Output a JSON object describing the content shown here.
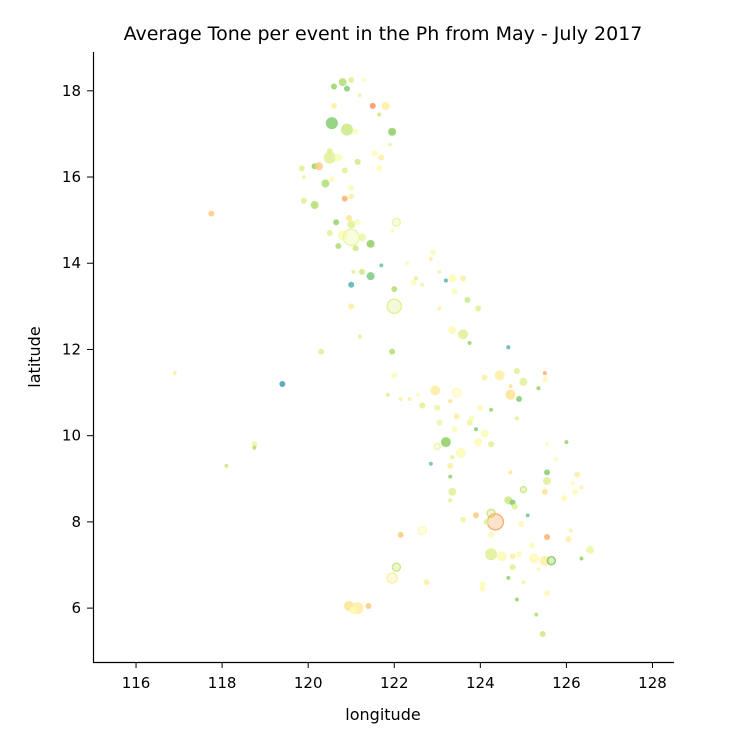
{
  "chart_data": {
    "type": "scatter",
    "title": "Average Tone per event in the Ph from May - July 2017",
    "xlabel": "longitude",
    "ylabel": "latitude",
    "xlim": [
      115,
      128.5
    ],
    "ylim": [
      4.75,
      18.9
    ],
    "x_ticks": [
      116,
      118,
      120,
      122,
      124,
      126,
      128
    ],
    "y_ticks": [
      6,
      8,
      10,
      12,
      14,
      16,
      18
    ],
    "grid": false,
    "legend": "none",
    "color_scale": [
      "#d7301f",
      "#fc8d59",
      "#fee08b",
      "#ffffbf",
      "#d9ef8b",
      "#91cf60",
      "#66c2a5",
      "#3288bd"
    ],
    "points": [
      {
        "x": 120.9,
        "y": 18.05,
        "size": 3,
        "tone": 0.75
      },
      {
        "x": 120.6,
        "y": 18.1,
        "size": 3,
        "tone": 0.7
      },
      {
        "x": 120.8,
        "y": 18.2,
        "size": 4,
        "tone": 0.65
      },
      {
        "x": 121.0,
        "y": 18.25,
        "size": 3,
        "tone": 0.55
      },
      {
        "x": 121.3,
        "y": 18.25,
        "size": 2,
        "tone": 0.4
      },
      {
        "x": 121.2,
        "y": 17.9,
        "size": 2,
        "tone": 0.5
      },
      {
        "x": 120.6,
        "y": 17.65,
        "size": 3,
        "tone": 0.35
      },
      {
        "x": 121.5,
        "y": 17.65,
        "size": 3,
        "tone": 0.15
      },
      {
        "x": 121.8,
        "y": 17.65,
        "size": 4,
        "tone": 0.35
      },
      {
        "x": 121.65,
        "y": 17.45,
        "size": 2,
        "tone": 0.6
      },
      {
        "x": 120.55,
        "y": 17.25,
        "size": 6,
        "tone": 0.75
      },
      {
        "x": 120.9,
        "y": 17.1,
        "size": 6,
        "tone": 0.6
      },
      {
        "x": 121.1,
        "y": 17.05,
        "size": 3,
        "tone": 0.45
      },
      {
        "x": 121.95,
        "y": 17.05,
        "size": 4,
        "tone": 0.72
      },
      {
        "x": 121.9,
        "y": 16.75,
        "size": 2,
        "tone": 0.5
      },
      {
        "x": 120.5,
        "y": 16.6,
        "size": 3,
        "tone": 0.55
      },
      {
        "x": 120.5,
        "y": 16.45,
        "size": 6,
        "tone": 0.55
      },
      {
        "x": 120.7,
        "y": 16.45,
        "size": 4,
        "tone": 0.45
      },
      {
        "x": 121.55,
        "y": 16.55,
        "size": 3,
        "tone": 0.4
      },
      {
        "x": 121.7,
        "y": 16.45,
        "size": 3,
        "tone": 0.35
      },
      {
        "x": 121.15,
        "y": 16.35,
        "size": 3,
        "tone": 0.6
      },
      {
        "x": 120.15,
        "y": 16.25,
        "size": 3,
        "tone": 0.7
      },
      {
        "x": 120.25,
        "y": 16.25,
        "size": 4,
        "tone": 0.25
      },
      {
        "x": 119.85,
        "y": 16.2,
        "size": 3,
        "tone": 0.55
      },
      {
        "x": 120.85,
        "y": 16.15,
        "size": 3,
        "tone": 0.55
      },
      {
        "x": 121.65,
        "y": 16.2,
        "size": 3,
        "tone": 0.4
      },
      {
        "x": 119.9,
        "y": 16.0,
        "size": 2,
        "tone": 0.35
      },
      {
        "x": 120.55,
        "y": 15.95,
        "size": 3,
        "tone": 0.45
      },
      {
        "x": 120.4,
        "y": 15.85,
        "size": 4,
        "tone": 0.65
      },
      {
        "x": 121.0,
        "y": 15.75,
        "size": 3,
        "tone": 0.45
      },
      {
        "x": 119.9,
        "y": 15.45,
        "size": 3,
        "tone": 0.55
      },
      {
        "x": 120.15,
        "y": 15.35,
        "size": 4,
        "tone": 0.65
      },
      {
        "x": 120.85,
        "y": 15.5,
        "size": 3,
        "tone": 0.2
      },
      {
        "x": 121.0,
        "y": 15.55,
        "size": 3,
        "tone": 0.35
      },
      {
        "x": 117.75,
        "y": 15.15,
        "size": 3,
        "tone": 0.25
      },
      {
        "x": 120.65,
        "y": 14.95,
        "size": 3,
        "tone": 0.7
      },
      {
        "x": 120.95,
        "y": 15.05,
        "size": 3,
        "tone": 0.3
      },
      {
        "x": 121.0,
        "y": 14.9,
        "size": 4,
        "tone": 0.55
      },
      {
        "x": 121.15,
        "y": 14.95,
        "size": 3,
        "tone": 0.45
      },
      {
        "x": 122.05,
        "y": 14.95,
        "size": 4,
        "tone": 0.5,
        "ring": true
      },
      {
        "x": 121.95,
        "y": 14.75,
        "size": 2,
        "tone": 0.45
      },
      {
        "x": 120.5,
        "y": 14.7,
        "size": 3,
        "tone": 0.55
      },
      {
        "x": 120.8,
        "y": 14.65,
        "size": 5,
        "tone": 0.4
      },
      {
        "x": 121.0,
        "y": 14.6,
        "size": 8,
        "tone": 0.5,
        "ring": true
      },
      {
        "x": 121.25,
        "y": 14.6,
        "size": 4,
        "tone": 0.5
      },
      {
        "x": 121.45,
        "y": 14.45,
        "size": 4,
        "tone": 0.72
      },
      {
        "x": 121.1,
        "y": 14.35,
        "size": 3,
        "tone": 0.6
      },
      {
        "x": 120.7,
        "y": 14.4,
        "size": 3,
        "tone": 0.65
      },
      {
        "x": 122.9,
        "y": 14.25,
        "size": 3,
        "tone": 0.45
      },
      {
        "x": 122.85,
        "y": 14.1,
        "size": 2,
        "tone": 0.35
      },
      {
        "x": 122.3,
        "y": 14.0,
        "size": 2,
        "tone": 0.4
      },
      {
        "x": 121.7,
        "y": 13.95,
        "size": 2,
        "tone": 0.85
      },
      {
        "x": 121.05,
        "y": 13.8,
        "size": 2,
        "tone": 0.55
      },
      {
        "x": 121.25,
        "y": 13.8,
        "size": 3,
        "tone": 0.6
      },
      {
        "x": 123.05,
        "y": 13.8,
        "size": 2,
        "tone": 0.35
      },
      {
        "x": 121.45,
        "y": 13.7,
        "size": 4,
        "tone": 0.78
      },
      {
        "x": 122.5,
        "y": 13.65,
        "size": 2,
        "tone": 0.55
      },
      {
        "x": 123.35,
        "y": 13.65,
        "size": 4,
        "tone": 0.4
      },
      {
        "x": 123.6,
        "y": 13.65,
        "size": 3,
        "tone": 0.35
      },
      {
        "x": 123.2,
        "y": 13.6,
        "size": 2,
        "tone": 0.9
      },
      {
        "x": 122.45,
        "y": 13.55,
        "size": 3,
        "tone": 0.4
      },
      {
        "x": 122.65,
        "y": 13.5,
        "size": 2,
        "tone": 0.5
      },
      {
        "x": 121.0,
        "y": 13.5,
        "size": 3,
        "tone": 0.9
      },
      {
        "x": 122.0,
        "y": 13.4,
        "size": 3,
        "tone": 0.65
      },
      {
        "x": 123.4,
        "y": 13.35,
        "size": 3,
        "tone": 0.45
      },
      {
        "x": 123.7,
        "y": 13.15,
        "size": 3,
        "tone": 0.6
      },
      {
        "x": 122.0,
        "y": 13.0,
        "size": 7,
        "tone": 0.55,
        "ring": true
      },
      {
        "x": 123.05,
        "y": 12.95,
        "size": 2,
        "tone": 0.35
      },
      {
        "x": 123.95,
        "y": 12.95,
        "size": 3,
        "tone": 0.55
      },
      {
        "x": 121.0,
        "y": 13.0,
        "size": 3,
        "tone": 0.35
      },
      {
        "x": 123.35,
        "y": 12.45,
        "size": 4,
        "tone": 0.4
      },
      {
        "x": 123.6,
        "y": 12.35,
        "size": 5,
        "tone": 0.55
      },
      {
        "x": 121.2,
        "y": 12.3,
        "size": 2,
        "tone": 0.55
      },
      {
        "x": 123.75,
        "y": 12.15,
        "size": 2,
        "tone": 0.7
      },
      {
        "x": 124.65,
        "y": 12.05,
        "size": 2,
        "tone": 0.9
      },
      {
        "x": 121.95,
        "y": 11.95,
        "size": 3,
        "tone": 0.65
      },
      {
        "x": 120.3,
        "y": 11.95,
        "size": 3,
        "tone": 0.55
      },
      {
        "x": 116.9,
        "y": 11.45,
        "size": 2,
        "tone": 0.35
      },
      {
        "x": 119.4,
        "y": 11.2,
        "size": 3,
        "tone": 0.95
      },
      {
        "x": 125.5,
        "y": 11.45,
        "size": 2,
        "tone": 0.2
      },
      {
        "x": 122.0,
        "y": 11.4,
        "size": 3,
        "tone": 0.45
      },
      {
        "x": 124.45,
        "y": 11.4,
        "size": 5,
        "tone": 0.35
      },
      {
        "x": 124.1,
        "y": 11.35,
        "size": 3,
        "tone": 0.35
      },
      {
        "x": 124.85,
        "y": 11.5,
        "size": 3,
        "tone": 0.55
      },
      {
        "x": 125.0,
        "y": 11.25,
        "size": 4,
        "tone": 0.55
      },
      {
        "x": 125.5,
        "y": 11.3,
        "size": 3,
        "tone": 0.4
      },
      {
        "x": 125.35,
        "y": 11.1,
        "size": 2,
        "tone": 0.7
      },
      {
        "x": 124.7,
        "y": 11.15,
        "size": 2,
        "tone": 0.3
      },
      {
        "x": 122.95,
        "y": 11.05,
        "size": 5,
        "tone": 0.35
      },
      {
        "x": 123.45,
        "y": 11.0,
        "size": 4,
        "tone": 0.4,
        "ring": true
      },
      {
        "x": 122.55,
        "y": 10.95,
        "size": 2,
        "tone": 0.4
      },
      {
        "x": 121.85,
        "y": 10.95,
        "size": 2,
        "tone": 0.55
      },
      {
        "x": 124.7,
        "y": 10.95,
        "size": 5,
        "tone": 0.3
      },
      {
        "x": 124.9,
        "y": 10.85,
        "size": 3,
        "tone": 0.75
      },
      {
        "x": 122.15,
        "y": 10.85,
        "size": 2,
        "tone": 0.35
      },
      {
        "x": 122.35,
        "y": 10.85,
        "size": 2,
        "tone": 0.35
      },
      {
        "x": 123.3,
        "y": 10.8,
        "size": 2,
        "tone": 0.3
      },
      {
        "x": 122.65,
        "y": 10.7,
        "size": 3,
        "tone": 0.55
      },
      {
        "x": 123.0,
        "y": 10.65,
        "size": 3,
        "tone": 0.5
      },
      {
        "x": 124.0,
        "y": 10.65,
        "size": 3,
        "tone": 0.4
      },
      {
        "x": 124.25,
        "y": 10.6,
        "size": 2,
        "tone": 0.7
      },
      {
        "x": 123.45,
        "y": 10.45,
        "size": 3,
        "tone": 0.35
      },
      {
        "x": 123.8,
        "y": 10.4,
        "size": 3,
        "tone": 0.45
      },
      {
        "x": 124.85,
        "y": 10.4,
        "size": 2,
        "tone": 0.55
      },
      {
        "x": 123.05,
        "y": 10.3,
        "size": 3,
        "tone": 0.5
      },
      {
        "x": 123.75,
        "y": 10.3,
        "size": 3,
        "tone": 0.5
      },
      {
        "x": 123.4,
        "y": 10.15,
        "size": 3,
        "tone": 0.45
      },
      {
        "x": 124.1,
        "y": 10.05,
        "size": 4,
        "tone": 0.45
      },
      {
        "x": 123.9,
        "y": 10.15,
        "size": 2,
        "tone": 0.75
      },
      {
        "x": 123.2,
        "y": 9.85,
        "size": 5,
        "tone": 0.72
      },
      {
        "x": 123.0,
        "y": 9.75,
        "size": 3,
        "tone": 0.5,
        "ring": true
      },
      {
        "x": 124.25,
        "y": 9.8,
        "size": 3,
        "tone": 0.55
      },
      {
        "x": 123.95,
        "y": 9.85,
        "size": 4,
        "tone": 0.4
      },
      {
        "x": 123.55,
        "y": 9.6,
        "size": 5,
        "tone": 0.45
      },
      {
        "x": 118.75,
        "y": 9.8,
        "size": 3,
        "tone": 0.5
      },
      {
        "x": 118.75,
        "y": 9.72,
        "size": 2,
        "tone": 0.65
      },
      {
        "x": 125.55,
        "y": 9.8,
        "size": 2,
        "tone": 0.45
      },
      {
        "x": 126.0,
        "y": 9.85,
        "size": 2,
        "tone": 0.7
      },
      {
        "x": 123.35,
        "y": 9.5,
        "size": 2,
        "tone": 0.55
      },
      {
        "x": 125.75,
        "y": 9.45,
        "size": 2,
        "tone": 0.4
      },
      {
        "x": 122.85,
        "y": 9.35,
        "size": 2,
        "tone": 0.85
      },
      {
        "x": 123.3,
        "y": 9.3,
        "size": 3,
        "tone": 0.35
      },
      {
        "x": 118.1,
        "y": 9.3,
        "size": 2,
        "tone": 0.6
      },
      {
        "x": 124.7,
        "y": 9.15,
        "size": 2,
        "tone": 0.3
      },
      {
        "x": 125.55,
        "y": 9.15,
        "size": 3,
        "tone": 0.75
      },
      {
        "x": 126.25,
        "y": 9.1,
        "size": 3,
        "tone": 0.35
      },
      {
        "x": 123.3,
        "y": 9.05,
        "size": 2,
        "tone": 0.7
      },
      {
        "x": 125.55,
        "y": 8.95,
        "size": 4,
        "tone": 0.55
      },
      {
        "x": 126.15,
        "y": 8.9,
        "size": 2,
        "tone": 0.4
      },
      {
        "x": 126.35,
        "y": 8.8,
        "size": 2,
        "tone": 0.35
      },
      {
        "x": 125.0,
        "y": 8.75,
        "size": 3,
        "tone": 0.6,
        "ring": true
      },
      {
        "x": 123.35,
        "y": 8.7,
        "size": 4,
        "tone": 0.55
      },
      {
        "x": 125.5,
        "y": 8.7,
        "size": 3,
        "tone": 0.3
      },
      {
        "x": 126.2,
        "y": 8.7,
        "size": 3,
        "tone": 0.45
      },
      {
        "x": 125.95,
        "y": 8.55,
        "size": 3,
        "tone": 0.4
      },
      {
        "x": 123.3,
        "y": 8.5,
        "size": 2,
        "tone": 0.55
      },
      {
        "x": 124.65,
        "y": 8.5,
        "size": 4,
        "tone": 0.6
      },
      {
        "x": 124.75,
        "y": 8.45,
        "size": 3,
        "tone": 0.75
      },
      {
        "x": 124.8,
        "y": 8.35,
        "size": 3,
        "tone": 0.55
      },
      {
        "x": 124.25,
        "y": 8.2,
        "size": 4,
        "tone": 0.6,
        "ring": true
      },
      {
        "x": 123.9,
        "y": 8.15,
        "size": 3,
        "tone": 0.25
      },
      {
        "x": 125.1,
        "y": 8.15,
        "size": 2,
        "tone": 0.8
      },
      {
        "x": 123.6,
        "y": 8.05,
        "size": 3,
        "tone": 0.5
      },
      {
        "x": 124.35,
        "y": 8.0,
        "size": 8,
        "tone": 0.2,
        "ring": true
      },
      {
        "x": 124.15,
        "y": 8.0,
        "size": 3,
        "tone": 0.55
      },
      {
        "x": 124.95,
        "y": 7.95,
        "size": 3,
        "tone": 0.4
      },
      {
        "x": 122.65,
        "y": 7.8,
        "size": 4,
        "tone": 0.45,
        "ring": true
      },
      {
        "x": 126.1,
        "y": 7.8,
        "size": 2,
        "tone": 0.35
      },
      {
        "x": 122.15,
        "y": 7.7,
        "size": 3,
        "tone": 0.25
      },
      {
        "x": 124.25,
        "y": 7.7,
        "size": 3,
        "tone": 0.45
      },
      {
        "x": 125.55,
        "y": 7.65,
        "size": 3,
        "tone": 0.2
      },
      {
        "x": 126.05,
        "y": 7.6,
        "size": 3,
        "tone": 0.35
      },
      {
        "x": 125.2,
        "y": 7.45,
        "size": 3,
        "tone": 0.45
      },
      {
        "x": 126.55,
        "y": 7.35,
        "size": 4,
        "tone": 0.5
      },
      {
        "x": 124.25,
        "y": 7.25,
        "size": 6,
        "tone": 0.55
      },
      {
        "x": 124.5,
        "y": 7.2,
        "size": 5,
        "tone": 0.4
      },
      {
        "x": 124.75,
        "y": 7.2,
        "size": 3,
        "tone": 0.35
      },
      {
        "x": 124.9,
        "y": 7.25,
        "size": 3,
        "tone": 0.45
      },
      {
        "x": 125.25,
        "y": 7.15,
        "size": 5,
        "tone": 0.4
      },
      {
        "x": 125.5,
        "y": 7.1,
        "size": 5,
        "tone": 0.35
      },
      {
        "x": 125.65,
        "y": 7.1,
        "size": 4,
        "tone": 0.72,
        "ring": true
      },
      {
        "x": 126.35,
        "y": 7.15,
        "size": 2,
        "tone": 0.7
      },
      {
        "x": 124.75,
        "y": 6.95,
        "size": 3,
        "tone": 0.55
      },
      {
        "x": 125.35,
        "y": 6.9,
        "size": 2,
        "tone": 0.45
      },
      {
        "x": 122.05,
        "y": 6.95,
        "size": 4,
        "tone": 0.6,
        "ring": true
      },
      {
        "x": 121.95,
        "y": 6.7,
        "size": 5,
        "tone": 0.35,
        "ring": true
      },
      {
        "x": 122.75,
        "y": 6.6,
        "size": 3,
        "tone": 0.35
      },
      {
        "x": 124.05,
        "y": 6.55,
        "size": 3,
        "tone": 0.45
      },
      {
        "x": 124.65,
        "y": 6.7,
        "size": 2,
        "tone": 0.7
      },
      {
        "x": 125.0,
        "y": 6.6,
        "size": 2,
        "tone": 0.5
      },
      {
        "x": 124.05,
        "y": 6.45,
        "size": 3,
        "tone": 0.4
      },
      {
        "x": 125.55,
        "y": 6.35,
        "size": 3,
        "tone": 0.4
      },
      {
        "x": 124.85,
        "y": 6.2,
        "size": 2,
        "tone": 0.7
      },
      {
        "x": 120.95,
        "y": 6.05,
        "size": 5,
        "tone": 0.3
      },
      {
        "x": 121.15,
        "y": 6.0,
        "size": 6,
        "tone": 0.35
      },
      {
        "x": 121.4,
        "y": 6.05,
        "size": 3,
        "tone": 0.25
      },
      {
        "x": 121.05,
        "y": 5.95,
        "size": 4,
        "tone": 0.4
      },
      {
        "x": 125.3,
        "y": 5.85,
        "size": 2,
        "tone": 0.65
      },
      {
        "x": 125.45,
        "y": 5.4,
        "size": 3,
        "tone": 0.6
      }
    ]
  }
}
